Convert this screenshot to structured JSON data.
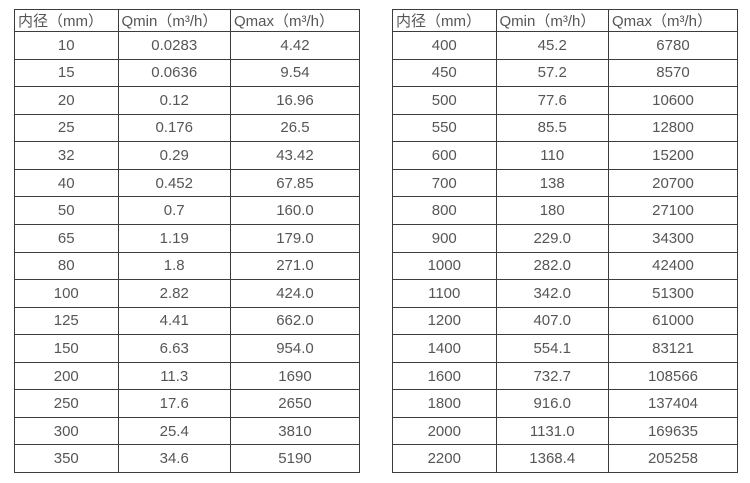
{
  "colors": {
    "background": "#ffffff",
    "border": "#3c3c3c",
    "text": "#565656"
  },
  "tables": [
    {
      "name": "flow-table-small-diameters",
      "headers": [
        "内径（mm）",
        "Qmin（m³/h）",
        "Qmax（m³/h）"
      ],
      "rows": [
        [
          "10",
          "0.0283",
          "4.42"
        ],
        [
          "15",
          "0.0636",
          "9.54"
        ],
        [
          "20",
          "0.12",
          "16.96"
        ],
        [
          "25",
          "0.176",
          "26.5"
        ],
        [
          "32",
          "0.29",
          "43.42"
        ],
        [
          "40",
          "0.452",
          "67.85"
        ],
        [
          "50",
          "0.7",
          "160.0"
        ],
        [
          "65",
          "1.19",
          "179.0"
        ],
        [
          "80",
          "1.8",
          "271.0"
        ],
        [
          "100",
          "2.82",
          "424.0"
        ],
        [
          "125",
          "4.41",
          "662.0"
        ],
        [
          "150",
          "6.63",
          "954.0"
        ],
        [
          "200",
          "11.3",
          "1690"
        ],
        [
          "250",
          "17.6",
          "2650"
        ],
        [
          "300",
          "25.4",
          "3810"
        ],
        [
          "350",
          "34.6",
          "5190"
        ]
      ]
    },
    {
      "name": "flow-table-large-diameters",
      "headers": [
        "内径（mm）",
        "Qmin（m³/h）",
        "Qmax（m³/h）"
      ],
      "rows": [
        [
          "400",
          "45.2",
          "6780"
        ],
        [
          "450",
          "57.2",
          "8570"
        ],
        [
          "500",
          "77.6",
          "10600"
        ],
        [
          "550",
          "85.5",
          "12800"
        ],
        [
          "600",
          "110",
          "15200"
        ],
        [
          "700",
          "138",
          "20700"
        ],
        [
          "800",
          "180",
          "27100"
        ],
        [
          "900",
          "229.0",
          "34300"
        ],
        [
          "1000",
          "282.0",
          "42400"
        ],
        [
          "1100",
          "342.0",
          "51300"
        ],
        [
          "1200",
          "407.0",
          "61000"
        ],
        [
          "1400",
          "554.1",
          "83121"
        ],
        [
          "1600",
          "732.7",
          "108566"
        ],
        [
          "1800",
          "916.0",
          "137404"
        ],
        [
          "2000",
          "1131.0",
          "169635"
        ],
        [
          "2200",
          "1368.4",
          "205258"
        ]
      ]
    }
  ]
}
